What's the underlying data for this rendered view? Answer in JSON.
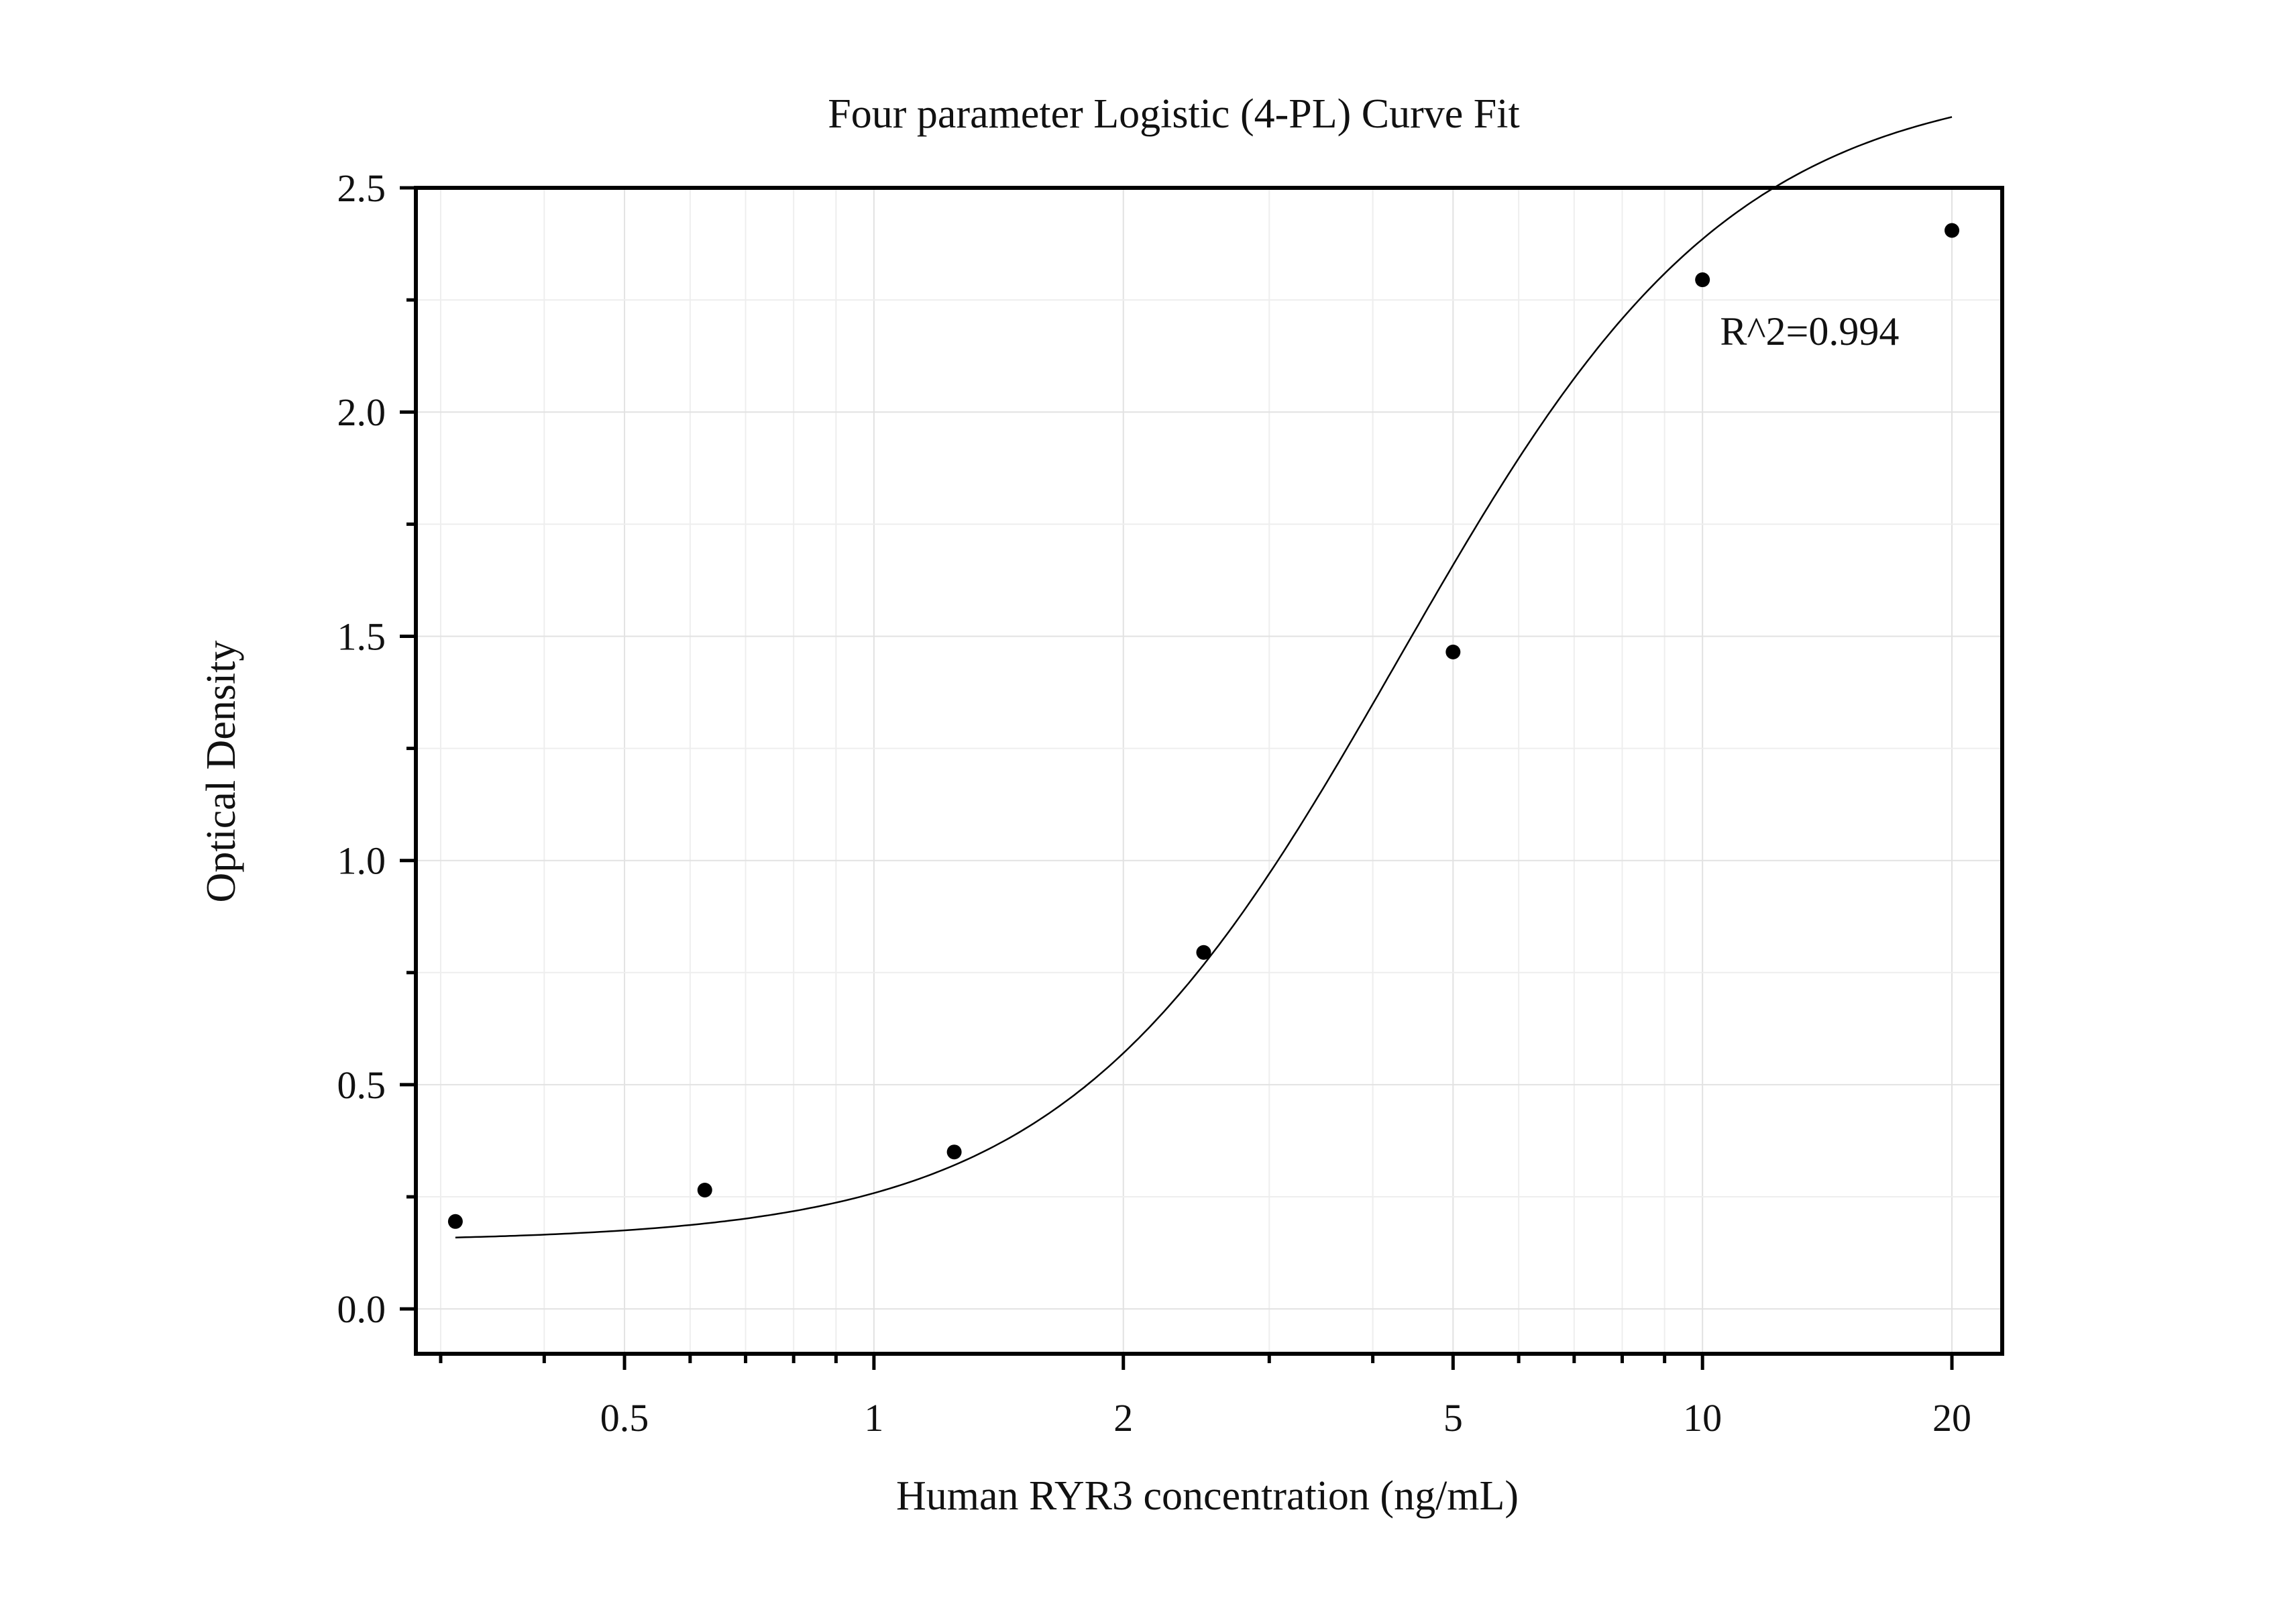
{
  "chart_data": {
    "type": "scatter",
    "title": "Four parameter Logistic (4-PL) Curve Fit",
    "xlabel": "Human RYR3 concentration (ng/mL)",
    "ylabel": "Optical Density",
    "x_scale": "log",
    "xlim": [
      0.28,
      23
    ],
    "ylim": [
      -0.1,
      2.5
    ],
    "x_ticks": [
      0.5,
      1,
      2,
      5,
      10,
      20
    ],
    "x_tick_labels": [
      "0.5",
      "1",
      "2",
      "5",
      "10",
      "20"
    ],
    "y_ticks": [
      0.0,
      0.5,
      1.0,
      1.5,
      2.0,
      2.5
    ],
    "y_tick_labels": [
      "0.0",
      "0.5",
      "1.0",
      "1.5",
      "2.0",
      "2.5"
    ],
    "grid": true,
    "series": [
      {
        "kind": "points",
        "x": [
          0.3125,
          0.625,
          1.25,
          2.5,
          5,
          10,
          20
        ],
        "y": [
          0.195,
          0.265,
          0.35,
          0.795,
          1.465,
          2.295,
          2.405
        ]
      },
      {
        "kind": "fit-curve",
        "model": "4PL",
        "params": {
          "A": 0.15,
          "D": 2.75,
          "C": 4.3,
          "B": 2.15
        },
        "x_range": [
          0.3125,
          20
        ]
      }
    ],
    "annotations": [
      {
        "text": "R^2=0.994",
        "x": 10.5,
        "y": 2.15
      }
    ]
  }
}
